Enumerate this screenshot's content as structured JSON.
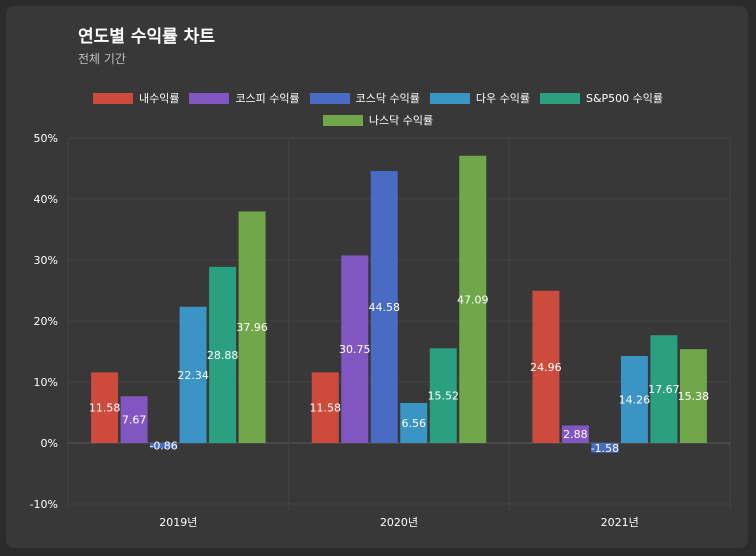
{
  "header": {
    "title": "연도별 수익률 차트",
    "subtitle": "전체 기간"
  },
  "chart_data": {
    "type": "bar",
    "categories": [
      "2019년",
      "2020년",
      "2021년"
    ],
    "series": [
      {
        "name": "내수익률",
        "color": "#cc4b3c",
        "values": [
          11.58,
          11.58,
          24.96
        ]
      },
      {
        "name": "코스피 수익률",
        "color": "#8256c1",
        "values": [
          7.67,
          30.75,
          2.88
        ]
      },
      {
        "name": "코스닥 수익률",
        "color": "#4a6bc3",
        "values": [
          -0.86,
          44.58,
          -1.58
        ]
      },
      {
        "name": "다우 수익률",
        "color": "#3a94c4",
        "values": [
          22.34,
          6.56,
          14.26
        ]
      },
      {
        "name": "S&P500 수익률",
        "color": "#2ba080",
        "values": [
          28.88,
          15.52,
          17.67
        ]
      },
      {
        "name": "나스닥 수익률",
        "color": "#6fa74a",
        "values": [
          37.96,
          47.09,
          15.38
        ]
      }
    ],
    "yticks": [
      "50%",
      "40%",
      "30%",
      "20%",
      "10%",
      "0%",
      "-10%"
    ],
    "ylim": [
      -10,
      50
    ],
    "grid": true,
    "legend_position": "top"
  }
}
